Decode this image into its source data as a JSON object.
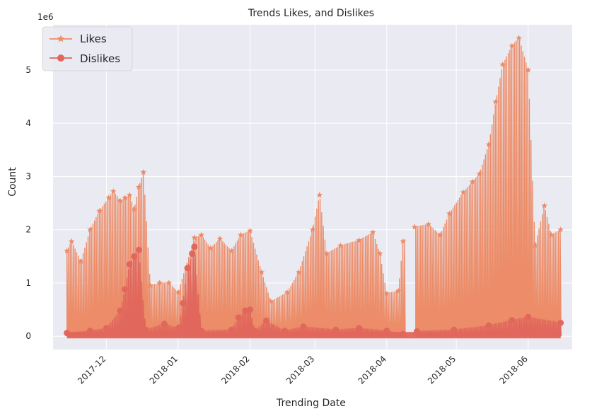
{
  "chart_data": {
    "type": "line",
    "title": "Trends Likes, and Dislikes",
    "xlabel": "Trending Date",
    "ylabel": "Count",
    "y_multiplier_label": "1e6",
    "ylim": [
      -250000,
      5850000
    ],
    "xlim": [
      "2017-11-08",
      "2018-06-20"
    ],
    "yticks": [
      0,
      1000000,
      2000000,
      3000000,
      4000000,
      5000000
    ],
    "ytick_labels": [
      "0",
      "1",
      "2",
      "3",
      "4",
      "5"
    ],
    "xticks": [
      "2017-12-01",
      "2018-01-01",
      "2018-02-01",
      "2018-03-01",
      "2018-04-01",
      "2018-05-01",
      "2018-06-01"
    ],
    "xtick_labels": [
      "2017-12",
      "2018-01",
      "2018-02",
      "2018-03",
      "2018-04",
      "2018-05",
      "2018-06"
    ],
    "grid": true,
    "legend_position": "top-left",
    "background_color": "#eaeaf2",
    "series": [
      {
        "name": "Likes",
        "color": "#ec8c68",
        "marker": "star",
        "peak_envelope": [
          [
            "2017-11-14",
            1600000
          ],
          [
            "2017-11-16",
            1780000
          ],
          [
            "2017-11-20",
            1400000
          ],
          [
            "2017-11-24",
            2000000
          ],
          [
            "2017-11-28",
            2350000
          ],
          [
            "2017-12-02",
            2600000
          ],
          [
            "2017-12-04",
            2720000
          ],
          [
            "2017-12-07",
            2540000
          ],
          [
            "2017-12-09",
            2600000
          ],
          [
            "2017-12-11",
            2650000
          ],
          [
            "2017-12-13",
            2380000
          ],
          [
            "2017-12-15",
            2800000
          ],
          [
            "2017-12-17",
            3080000
          ],
          [
            "2017-12-20",
            950000
          ],
          [
            "2017-12-24",
            1000000
          ],
          [
            "2017-12-28",
            1000000
          ],
          [
            "2018-01-01",
            820000
          ],
          [
            "2018-01-08",
            1850000
          ],
          [
            "2018-01-11",
            1900000
          ],
          [
            "2018-01-15",
            1650000
          ],
          [
            "2018-01-19",
            1830000
          ],
          [
            "2018-01-24",
            1600000
          ],
          [
            "2018-01-28",
            1900000
          ],
          [
            "2018-02-01",
            1980000
          ],
          [
            "2018-02-06",
            1200000
          ],
          [
            "2018-02-10",
            650000
          ],
          [
            "2018-02-17",
            820000
          ],
          [
            "2018-02-22",
            1200000
          ],
          [
            "2018-02-28",
            2000000
          ],
          [
            "2018-03-03",
            2650000
          ],
          [
            "2018-03-06",
            1550000
          ],
          [
            "2018-03-12",
            1700000
          ],
          [
            "2018-03-20",
            1800000
          ],
          [
            "2018-03-26",
            1950000
          ],
          [
            "2018-03-29",
            1550000
          ],
          [
            "2018-04-01",
            800000
          ],
          [
            "2018-04-06",
            850000
          ],
          [
            "2018-04-08",
            1780000
          ],
          [
            "2018-04-13",
            2050000
          ],
          [
            "2018-04-19",
            2100000
          ],
          [
            "2018-04-24",
            1900000
          ],
          [
            "2018-04-28",
            2300000
          ],
          [
            "2018-05-04",
            2700000
          ],
          [
            "2018-05-08",
            2900000
          ],
          [
            "2018-05-11",
            3050000
          ],
          [
            "2018-05-15",
            3600000
          ],
          [
            "2018-05-18",
            4400000
          ],
          [
            "2018-05-21",
            5100000
          ],
          [
            "2018-05-25",
            5450000
          ],
          [
            "2018-05-28",
            5600000
          ],
          [
            "2018-06-01",
            5000000
          ],
          [
            "2018-06-04",
            1700000
          ],
          [
            "2018-06-08",
            2450000
          ],
          [
            "2018-06-11",
            1900000
          ],
          [
            "2018-06-15",
            2000000
          ]
        ]
      },
      {
        "name": "Dislikes",
        "color": "#e1675c",
        "marker": "circle",
        "peak_envelope": [
          [
            "2017-11-14",
            60000
          ],
          [
            "2017-11-24",
            100000
          ],
          [
            "2017-12-01",
            150000
          ],
          [
            "2017-12-07",
            480000
          ],
          [
            "2017-12-09",
            880000
          ],
          [
            "2017-12-11",
            1350000
          ],
          [
            "2017-12-13",
            1500000
          ],
          [
            "2017-12-15",
            1620000
          ],
          [
            "2017-12-18",
            120000
          ],
          [
            "2017-12-26",
            230000
          ],
          [
            "2018-01-01",
            150000
          ],
          [
            "2018-01-03",
            620000
          ],
          [
            "2018-01-05",
            1280000
          ],
          [
            "2018-01-07",
            1550000
          ],
          [
            "2018-01-08",
            1680000
          ],
          [
            "2018-01-11",
            100000
          ],
          [
            "2018-01-24",
            120000
          ],
          [
            "2018-01-27",
            350000
          ],
          [
            "2018-01-30",
            480000
          ],
          [
            "2018-02-01",
            500000
          ],
          [
            "2018-02-03",
            100000
          ],
          [
            "2018-02-08",
            290000
          ],
          [
            "2018-02-16",
            100000
          ],
          [
            "2018-02-24",
            180000
          ],
          [
            "2018-03-10",
            120000
          ],
          [
            "2018-03-20",
            150000
          ],
          [
            "2018-04-01",
            100000
          ],
          [
            "2018-04-08",
            40000
          ],
          [
            "2018-04-14",
            90000
          ],
          [
            "2018-04-30",
            120000
          ],
          [
            "2018-05-15",
            200000
          ],
          [
            "2018-05-25",
            300000
          ],
          [
            "2018-06-01",
            360000
          ],
          [
            "2018-06-15",
            250000
          ]
        ]
      }
    ]
  }
}
